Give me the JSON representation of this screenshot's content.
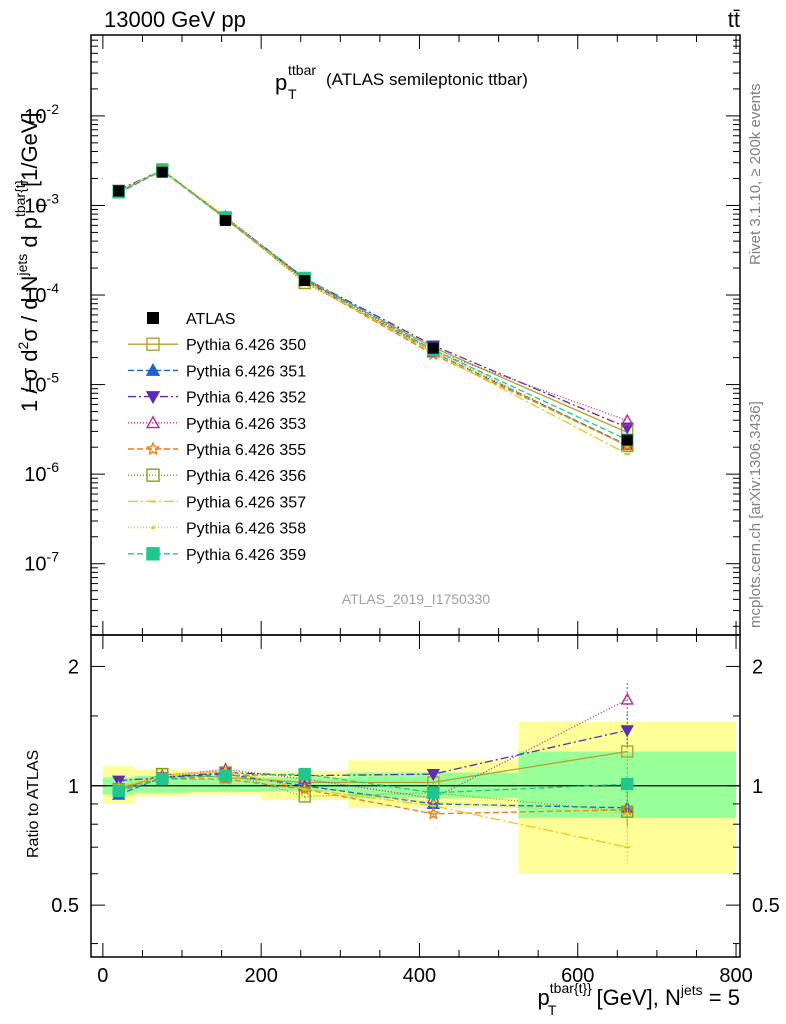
{
  "header": {
    "energy_label": "13000 GeV pp",
    "process_label": "tt̄"
  },
  "plot": {
    "title_main": "p",
    "title_sup": "ttbar",
    "title_sub": "T",
    "title_rest": "(ATLAS semileptonic ttbar)",
    "ylabel": "1 / σ d²σ / d Njets d p_T^{tbar{t}} [1/GeV]",
    "ylabel_parts": {
      "a": "1 / σ d",
      "b": "2",
      "c": "σ / d N",
      "d": "jets",
      "e": " d p",
      "f": "tbar{t}",
      "g": "T",
      "h": " [1/GeV]"
    },
    "xlabel_parts": {
      "a": "p",
      "b": "tbar{t}",
      "c": "}",
      "d": "T",
      "e": " [GeV], N",
      "f": "jets",
      "g": " = 5"
    },
    "ratio_ylabel": "Ratio to ATLAS",
    "watermark": "ATLAS_2019_I1750330",
    "side_text_top": "Rivet 3.1.10, ≥ 200k events",
    "side_text_bottom": "mcplots.cern.ch [arXiv:1306.3436]",
    "main_y_ticks": [
      {
        "base": "10",
        "exp": "-7",
        "value": 1e-07
      },
      {
        "base": "10",
        "exp": "-6",
        "value": 1e-06
      },
      {
        "base": "10",
        "exp": "-5",
        "value": 1e-05
      },
      {
        "base": "10",
        "exp": "-4",
        "value": 0.0001
      },
      {
        "base": "10",
        "exp": "-3",
        "value": 0.001
      },
      {
        "base": "10",
        "exp": "-2",
        "value": 0.01
      }
    ],
    "ratio_y_ticks": [
      {
        "label": "0.5",
        "value": 0.5
      },
      {
        "label": "1",
        "value": 1
      },
      {
        "label": "2",
        "value": 2
      }
    ],
    "x_ticks": [
      {
        "label": "0",
        "value": 0
      },
      {
        "label": "200",
        "value": 200
      },
      {
        "label": "400",
        "value": 400
      },
      {
        "label": "600",
        "value": 600
      },
      {
        "label": "800",
        "value": 800
      }
    ]
  },
  "colors": {
    "data": "#000000",
    "band_inner": "#99ff99",
    "band_outer": "#ffff99"
  },
  "chart_data": {
    "type": "line",
    "title": "p_T^{ttbar} (ATLAS semileptonic ttbar)",
    "xlabel": "p_T^{tbar{t}} [GeV], N^{jets} = 5",
    "ylabel": "1 / σ d²σ / d N^{jets} d p_T^{tbar{t}} [1/GeV]",
    "xlim": [
      -15,
      805
    ],
    "ylim": [
      1.6e-08,
      0.08
    ],
    "yscale": "log",
    "ratio_ylim": [
      0.37,
      2.4
    ],
    "bin_edges": [
      0,
      40,
      110,
      200,
      310,
      525,
      800
    ],
    "x": [
      20,
      75,
      155,
      255,
      417.5,
      662.5
    ],
    "data": {
      "name": "ATLAS",
      "values": [
        0.00145,
        0.00235,
        0.00068,
        0.000145,
        2.55e-05,
        2.4e-06
      ],
      "band_inner": [
        [
          0.95,
          1.05
        ],
        [
          0.96,
          1.06
        ],
        [
          0.965,
          1.045
        ],
        [
          0.97,
          1.05
        ],
        [
          0.93,
          1.08
        ],
        [
          0.83,
          1.22
        ]
      ],
      "band_outer": [
        [
          0.9,
          1.12
        ],
        [
          0.94,
          1.1
        ],
        [
          0.95,
          1.08
        ],
        [
          0.92,
          1.09
        ],
        [
          0.88,
          1.16
        ],
        [
          0.6,
          1.45
        ]
      ]
    },
    "series": [
      {
        "name": "Pythia 6.426 350",
        "color": "#b5a02d",
        "marker": "square-open",
        "dash": "",
        "ratio": [
          0.97,
          1.07,
          1.05,
          1.02,
          1.02,
          1.22
        ]
      },
      {
        "name": "Pythia 6.426 351",
        "color": "#1f5fd0",
        "marker": "triangle-up-filled",
        "dash": "6,3",
        "ratio": [
          0.95,
          1.05,
          1.07,
          1.0,
          0.9,
          0.88
        ]
      },
      {
        "name": "Pythia 6.426 352",
        "color": "#5a2db5",
        "marker": "triangle-down-filled",
        "dash": "8,3,2,3",
        "ratio": [
          1.03,
          1.05,
          1.08,
          1.06,
          1.07,
          1.38
        ]
      },
      {
        "name": "Pythia 6.426 353",
        "color": "#c0259b",
        "marker": "triangle-up-open",
        "dash": "1,2",
        "ratio": [
          0.98,
          1.06,
          1.1,
          1.04,
          0.93,
          1.65
        ]
      },
      {
        "name": "Pythia 6.426 355",
        "color": "#f07c14",
        "marker": "star-open",
        "dash": "6,3",
        "ratio": [
          0.99,
          1.04,
          1.04,
          0.98,
          0.85,
          0.87
        ]
      },
      {
        "name": "Pythia 6.426 356",
        "color": "#8a9c19",
        "marker": "square-open",
        "dash": "1,2",
        "ratio": [
          0.98,
          1.07,
          1.08,
          0.94,
          0.96,
          0.86
        ]
      },
      {
        "name": "Pythia 6.426 357",
        "color": "#f0c419",
        "marker": "dash",
        "dash": "10,3,2,3",
        "ratio": [
          0.99,
          1.06,
          1.09,
          0.98,
          0.89,
          0.7
        ]
      },
      {
        "name": "Pythia 6.426 358",
        "color": "#d2d21e",
        "marker": "dot",
        "dash": "1,2",
        "ratio": [
          1.0,
          1.05,
          1.1,
          0.98,
          0.91,
          0.85
        ]
      },
      {
        "name": "Pythia 6.426 359",
        "color": "#1ec88c",
        "marker": "square-filled",
        "dash": "6,3",
        "ratio": [
          0.97,
          1.04,
          1.06,
          1.07,
          0.96,
          1.01
        ]
      }
    ]
  }
}
